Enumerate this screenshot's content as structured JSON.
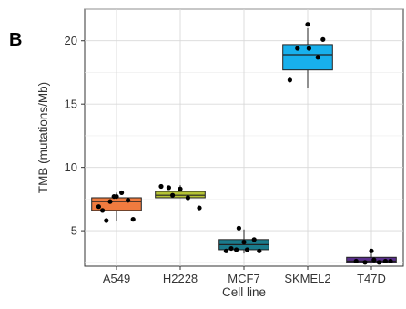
{
  "panel_label": "B",
  "chart_data": {
    "type": "box",
    "xlabel": "Cell line",
    "ylabel": "TMB (mutations/Mb)",
    "ylim": [
      2.2,
      22.5
    ],
    "yticks": [
      5,
      10,
      15,
      20
    ],
    "grid": true,
    "categories": [
      "A549",
      "H2228",
      "MCF7",
      "SKMEL2",
      "T47D"
    ],
    "boxes": [
      {
        "category": "A549",
        "q1": 6.6,
        "median": 7.3,
        "q3": 7.6,
        "whisker_low": 5.8,
        "whisker_high": 8.0,
        "color": "#F07B3F",
        "points": [
          [
            -0.28,
            6.9
          ],
          [
            -0.22,
            6.6
          ],
          [
            -0.16,
            5.8
          ],
          [
            -0.1,
            7.3
          ],
          [
            -0.04,
            7.7
          ],
          [
            0.0,
            7.7
          ],
          [
            0.08,
            8.0
          ],
          [
            0.18,
            7.4
          ],
          [
            0.26,
            5.9
          ]
        ]
      },
      {
        "category": "H2228",
        "q1": 7.6,
        "median": 7.8,
        "q3": 8.1,
        "whisker_low": 7.6,
        "whisker_high": 8.6,
        "color": "#B5C334",
        "points": [
          [
            -0.3,
            8.5
          ],
          [
            -0.18,
            8.4
          ],
          [
            -0.12,
            7.8
          ],
          [
            0.0,
            8.3
          ],
          [
            0.12,
            7.6
          ],
          [
            0.3,
            6.8
          ]
        ]
      },
      {
        "category": "MCF7",
        "q1": 3.5,
        "median": 3.9,
        "q3": 4.3,
        "whisker_low": 3.2,
        "whisker_high": 5.1,
        "color": "#1A7B8C",
        "points": [
          [
            -0.28,
            3.4
          ],
          [
            -0.2,
            3.6
          ],
          [
            -0.12,
            3.5
          ],
          [
            -0.08,
            5.2
          ],
          [
            0.0,
            4.1
          ],
          [
            0.05,
            3.5
          ],
          [
            0.16,
            4.3
          ],
          [
            0.24,
            3.4
          ]
        ]
      },
      {
        "category": "SKMEL2",
        "q1": 17.7,
        "median": 18.9,
        "q3": 19.7,
        "whisker_low": 16.3,
        "whisker_high": 21.0,
        "color": "#18B0EC",
        "points": [
          [
            -0.28,
            16.9
          ],
          [
            -0.16,
            19.4
          ],
          [
            0.0,
            21.3
          ],
          [
            0.02,
            19.4
          ],
          [
            0.16,
            18.7
          ],
          [
            0.24,
            20.1
          ]
        ]
      },
      {
        "category": "T47D",
        "q1": 2.5,
        "median": 2.6,
        "q3": 2.9,
        "whisker_low": 2.5,
        "whisker_high": 3.2,
        "color": "#5A2F8C",
        "points": [
          [
            -0.24,
            2.6
          ],
          [
            -0.1,
            2.5
          ],
          [
            0.0,
            3.4
          ],
          [
            0.04,
            2.7
          ],
          [
            0.12,
            2.5
          ],
          [
            0.22,
            2.6
          ],
          [
            0.3,
            2.6
          ]
        ]
      }
    ]
  }
}
